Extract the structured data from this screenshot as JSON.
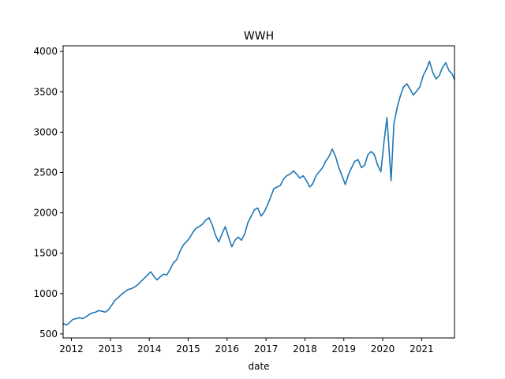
{
  "chart_data": {
    "type": "line",
    "title": "WWH",
    "xlabel": "date",
    "ylabel": "",
    "xlim": [
      "2011-10-15",
      "2021-11-05"
    ],
    "ylim": [
      450,
      4070
    ],
    "x_ticks": [
      "2012",
      "2013",
      "2014",
      "2015",
      "2016",
      "2017",
      "2018",
      "2019",
      "2020",
      "2021"
    ],
    "y_ticks": [
      500,
      1000,
      1500,
      2000,
      2500,
      3000,
      3500,
      4000
    ],
    "grid": false,
    "legend": "none",
    "line_color": "#1f77b4",
    "series": [
      {
        "x": [
          "2011-10-15",
          "2011-11-15",
          "2011-12-15",
          "2012-01-15",
          "2012-02-15",
          "2012-03-15",
          "2012-04-15",
          "2012-05-15",
          "2012-06-15",
          "2012-07-15",
          "2012-08-15",
          "2012-09-15",
          "2012-10-15",
          "2012-11-15",
          "2012-12-15",
          "2013-01-15",
          "2013-02-15",
          "2013-03-15",
          "2013-04-15",
          "2013-05-15",
          "2013-06-15",
          "2013-07-15",
          "2013-08-15",
          "2013-09-15",
          "2013-10-15",
          "2013-11-15",
          "2013-12-15",
          "2014-01-15",
          "2014-02-15",
          "2014-03-15",
          "2014-04-15",
          "2014-05-15",
          "2014-06-15",
          "2014-07-15",
          "2014-08-15",
          "2014-09-15",
          "2014-10-15",
          "2014-11-15",
          "2014-12-15",
          "2015-01-15",
          "2015-02-15",
          "2015-03-15",
          "2015-04-15",
          "2015-05-15",
          "2015-06-15",
          "2015-07-15",
          "2015-08-15",
          "2015-09-15",
          "2015-10-15",
          "2015-11-15",
          "2015-12-15",
          "2016-01-15",
          "2016-02-15",
          "2016-03-15",
          "2016-04-15",
          "2016-05-15",
          "2016-06-15",
          "2016-07-15",
          "2016-08-15",
          "2016-09-15",
          "2016-10-15",
          "2016-11-15",
          "2016-12-15",
          "2017-01-15",
          "2017-02-15",
          "2017-03-15",
          "2017-04-15",
          "2017-05-15",
          "2017-06-15",
          "2017-07-15",
          "2017-08-15",
          "2017-09-15",
          "2017-10-15",
          "2017-11-15",
          "2017-12-15",
          "2018-01-15",
          "2018-02-15",
          "2018-03-15",
          "2018-04-15",
          "2018-05-15",
          "2018-06-15",
          "2018-07-15",
          "2018-08-15",
          "2018-09-15",
          "2018-10-15",
          "2018-11-15",
          "2018-12-15",
          "2019-01-15",
          "2019-02-15",
          "2019-03-15",
          "2019-04-15",
          "2019-05-15",
          "2019-06-15",
          "2019-07-15",
          "2019-08-15",
          "2019-09-15",
          "2019-10-15",
          "2019-11-15",
          "2019-12-15",
          "2020-01-15",
          "2020-02-10",
          "2020-03-20",
          "2020-04-15",
          "2020-05-15",
          "2020-06-15",
          "2020-07-15",
          "2020-08-15",
          "2020-09-15",
          "2020-10-15",
          "2020-11-15",
          "2020-12-15",
          "2021-01-15",
          "2021-02-15",
          "2021-03-15",
          "2021-04-15",
          "2021-05-15",
          "2021-06-15",
          "2021-07-15",
          "2021-08-15",
          "2021-09-15",
          "2021-10-15",
          "2021-11-05"
        ],
        "values": [
          630,
          610,
          640,
          680,
          690,
          700,
          690,
          710,
          740,
          760,
          770,
          790,
          780,
          770,
          800,
          860,
          920,
          950,
          990,
          1020,
          1050,
          1060,
          1080,
          1110,
          1150,
          1190,
          1230,
          1270,
          1210,
          1170,
          1210,
          1240,
          1230,
          1300,
          1380,
          1420,
          1520,
          1600,
          1640,
          1690,
          1760,
          1810,
          1830,
          1860,
          1910,
          1940,
          1850,
          1720,
          1640,
          1740,
          1830,
          1700,
          1580,
          1660,
          1700,
          1660,
          1740,
          1880,
          1960,
          2040,
          2060,
          1960,
          2010,
          2100,
          2200,
          2300,
          2320,
          2340,
          2420,
          2460,
          2480,
          2520,
          2480,
          2430,
          2460,
          2400,
          2320,
          2360,
          2460,
          2510,
          2560,
          2640,
          2700,
          2790,
          2700,
          2560,
          2460,
          2350,
          2480,
          2560,
          2640,
          2660,
          2560,
          2590,
          2720,
          2760,
          2720,
          2590,
          2510,
          2900,
          3180,
          2400,
          3100,
          3300,
          3450,
          3560,
          3600,
          3530,
          3460,
          3510,
          3560,
          3700,
          3780,
          3880,
          3740,
          3660,
          3700,
          3800,
          3860,
          3760,
          3720,
          3650
        ]
      }
    ]
  }
}
